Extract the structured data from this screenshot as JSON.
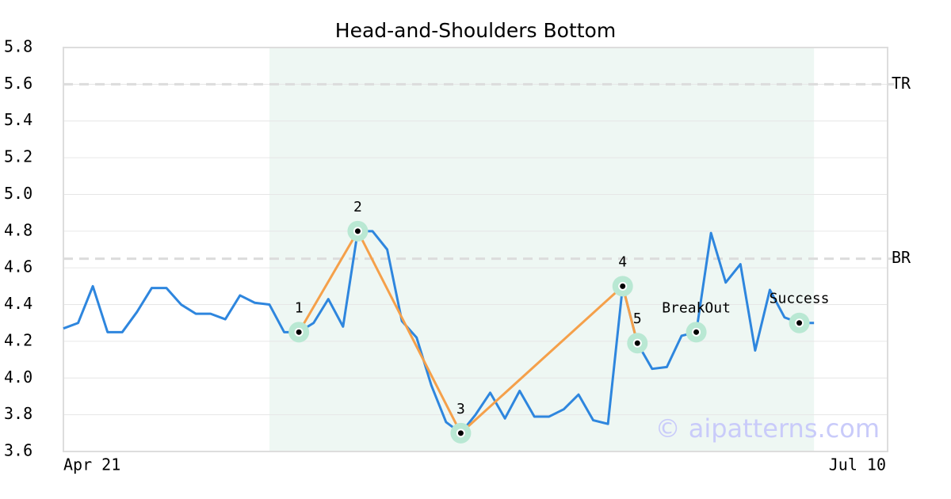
{
  "chart_data": {
    "type": "line",
    "title": "Head-and-Shoulders Bottom",
    "x": [
      0,
      1,
      2,
      3,
      4,
      5,
      6,
      7,
      8,
      9,
      10,
      11,
      12,
      13,
      14,
      15,
      16,
      17,
      18,
      19,
      20,
      21,
      22,
      23,
      24,
      25,
      26,
      27,
      28,
      29,
      30,
      31,
      32,
      33,
      34,
      35,
      36,
      37,
      38,
      39,
      40,
      41,
      42,
      43,
      44,
      45,
      46,
      47,
      48,
      49,
      50,
      51
    ],
    "series": [
      {
        "color": "#2e86de",
        "values": [
          4.27,
          4.3,
          4.5,
          4.25,
          4.25,
          4.36,
          4.49,
          4.49,
          4.4,
          4.35,
          4.35,
          4.32,
          4.45,
          4.41,
          4.4,
          4.25,
          4.25,
          4.3,
          4.43,
          4.28,
          4.8,
          4.8,
          4.7,
          4.31,
          4.22,
          3.96,
          3.76,
          3.7,
          3.8,
          3.92,
          3.78,
          3.93,
          3.79,
          3.79,
          3.83,
          3.91,
          3.77,
          3.75,
          4.5,
          4.19,
          4.05,
          4.06,
          4.23,
          4.25,
          4.79,
          4.52,
          4.62,
          4.15,
          4.48,
          4.33,
          4.3,
          4.3
        ]
      }
    ],
    "pattern": {
      "color": "#f5a04a",
      "points": [
        {
          "label": "1",
          "x": 16,
          "value": 4.25
        },
        {
          "label": "2",
          "x": 20,
          "value": 4.8
        },
        {
          "label": "3",
          "x": 27,
          "value": 3.7
        },
        {
          "label": "4",
          "x": 38,
          "value": 4.5
        },
        {
          "label": "5",
          "x": 39,
          "value": 4.19
        }
      ]
    },
    "events": [
      {
        "label": "BreakOut",
        "x": 43,
        "value": 4.25
      },
      {
        "label": "Success",
        "x": 50,
        "value": 4.3
      }
    ],
    "region": [
      14,
      51
    ],
    "levels": [
      {
        "label": "TR",
        "value": 5.6
      },
      {
        "label": "BR",
        "value": 4.65
      }
    ],
    "watermark": "© aipatterns.com",
    "xlim": [
      0,
      56
    ],
    "xticks": [
      {
        "value": 0,
        "label": "Apr 21"
      },
      {
        "value": 56,
        "label": "Jul 10"
      }
    ],
    "ylim": [
      3.6,
      5.8
    ],
    "yticks": [
      3.6,
      3.8,
      {
        "value": 4,
        "label": "4.0"
      },
      4.2,
      4.4,
      4.6,
      4.8,
      {
        "value": 5,
        "label": "5.0"
      },
      5.2,
      5.4,
      5.6,
      5.8
    ],
    "grid": true
  }
}
